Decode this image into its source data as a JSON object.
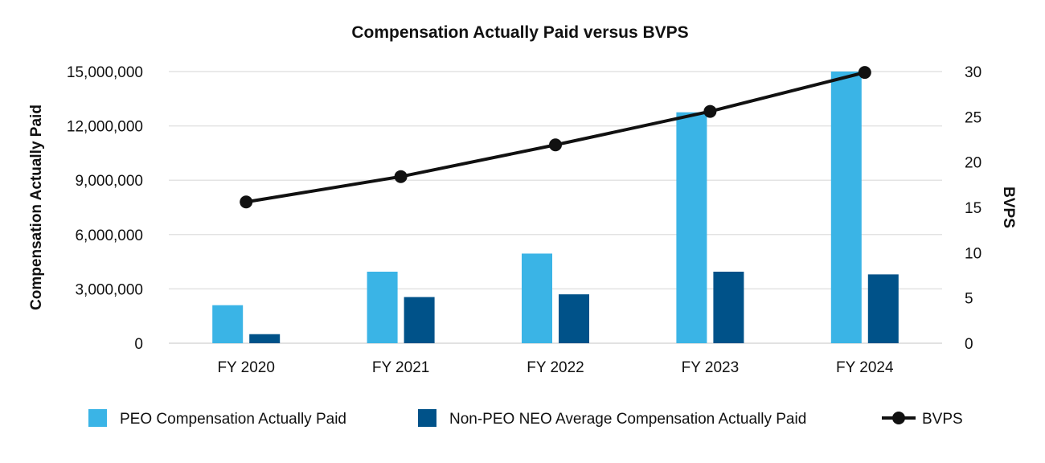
{
  "chart_data": {
    "type": "bar",
    "title": "Compensation Actually Paid versus BVPS",
    "categories": [
      "FY 2020",
      "FY 2021",
      "FY 2022",
      "FY 2023",
      "FY 2024"
    ],
    "series": [
      {
        "name": "PEO Compensation Actually Paid",
        "kind": "bar",
        "axis": "left",
        "color": "#3ab4e6",
        "values": [
          2100000,
          3950000,
          4950000,
          12750000,
          15000000
        ]
      },
      {
        "name": "Non-PEO NEO Average Compensation Actually Paid",
        "kind": "bar",
        "axis": "left",
        "color": "#005289",
        "values": [
          500000,
          2550000,
          2700000,
          3950000,
          3800000
        ]
      },
      {
        "name": "BVPS",
        "kind": "line",
        "axis": "right",
        "color": "#111111",
        "values": [
          15.6,
          18.4,
          21.9,
          25.6,
          29.9
        ]
      }
    ],
    "ylabel": "Compensation Actually Paid",
    "y2label": "BVPS",
    "ylim": [
      0,
      15000000
    ],
    "y2lim": [
      0,
      30
    ],
    "yticks": [
      "0",
      "3,000,000",
      "6,000,000",
      "9,000,000",
      "12,000,000",
      "15,000,000"
    ],
    "y2ticks": [
      "0",
      "5",
      "10",
      "15",
      "20",
      "25",
      "30"
    ],
    "grid": true,
    "legend_position": "bottom"
  }
}
